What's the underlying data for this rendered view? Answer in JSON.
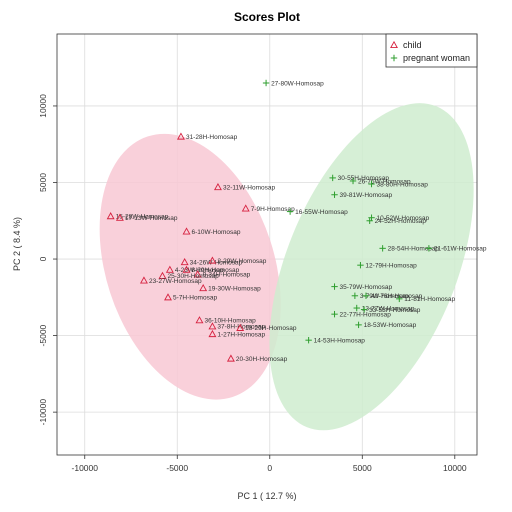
{
  "chart_data": {
    "type": "scatter",
    "title": "Scores Plot",
    "xlabel": "PC 1 ( 12.7 %)",
    "ylabel": "PC 2 ( 8.4 %)",
    "xlim": [
      -11500,
      11200
    ],
    "ylim": [
      -12800,
      14700
    ],
    "xticks": [
      -10000,
      -5000,
      0,
      5000,
      10000
    ],
    "yticks": [
      -10000,
      -5000,
      0,
      5000,
      10000
    ],
    "grid": true,
    "legend_position": "top-right",
    "colors": {
      "child": "#d6213f",
      "child_fill": "#f8c8d4",
      "pregnant": "#2e9e2e",
      "pregnant_fill": "#cfeccf",
      "grid": "#dcdcdc",
      "frame": "#333333"
    },
    "ellipses": [
      {
        "series": "child",
        "center": [
          -4300,
          -500
        ],
        "semi_axes": [
          4550,
          8950
        ],
        "angle_deg": -18
      },
      {
        "series": "pregnant",
        "center": [
          5500,
          -500
        ],
        "semi_axes": [
          4600,
          11300
        ],
        "angle_deg": 22
      }
    ],
    "series": [
      {
        "name": "child",
        "marker": "triangle",
        "points": [
          {
            "label": "31-28H-Homosap",
            "x": -4800,
            "y": 8000
          },
          {
            "label": "32-11W-Homosap",
            "x": -2800,
            "y": 4700
          },
          {
            "label": "7-9H-Homosap",
            "x": -1300,
            "y": 3300
          },
          {
            "label": "15-28W-Homosap",
            "x": -8600,
            "y": 2800
          },
          {
            "label": "17-13W-Homosap",
            "x": -8100,
            "y": 2700
          },
          {
            "label": "6-10W-Homosap",
            "x": -4500,
            "y": 1800
          },
          {
            "label": "34-26W-Homosap",
            "x": -4600,
            "y": -200
          },
          {
            "label": "2-29W-Homosap",
            "x": -3100,
            "y": -100
          },
          {
            "label": "4-23W-Homosap",
            "x": -5400,
            "y": -700
          },
          {
            "label": "8-29H-Homosap",
            "x": -4500,
            "y": -700
          },
          {
            "label": "9-34H-Homosap",
            "x": -3900,
            "y": -1000
          },
          {
            "label": "25-30H-Homosap",
            "x": -5800,
            "y": -1100
          },
          {
            "label": "23-27W-Homosap",
            "x": -6800,
            "y": -1400
          },
          {
            "label": "19-30W-Homosap",
            "x": -3600,
            "y": -1900
          },
          {
            "label": "5-7H-Homosap",
            "x": -5500,
            "y": -2500
          },
          {
            "label": "36-10H-Homosap",
            "x": -3800,
            "y": -4000
          },
          {
            "label": "37-8H-Homosap",
            "x": -3100,
            "y": -4400
          },
          {
            "label": "18-29H-Homosap",
            "x": -1600,
            "y": -4500
          },
          {
            "label": "1-27H-Homosap",
            "x": -3100,
            "y": -4900
          },
          {
            "label": "20-30H-Homosap",
            "x": -2100,
            "y": -6500
          }
        ]
      },
      {
        "name": "pregnant woman",
        "marker": "plus",
        "points": [
          {
            "label": "27-80W-Homosap",
            "x": -200,
            "y": 11500
          },
          {
            "label": "30-55H-Homosap",
            "x": 3400,
            "y": 5300
          },
          {
            "label": "26-75W-Homosap",
            "x": 4500,
            "y": 5100
          },
          {
            "label": "38-80H-Homosap",
            "x": 5500,
            "y": 4900
          },
          {
            "label": "39-81W-Homosap",
            "x": 3500,
            "y": 4200
          },
          {
            "label": "16-55W-Homosap",
            "x": 1100,
            "y": 3100
          },
          {
            "label": "10-52W-Homosap",
            "x": 5500,
            "y": 2700
          },
          {
            "label": "24-52H-Homosap",
            "x": 5400,
            "y": 2500
          },
          {
            "label": "28-54H-Homosap",
            "x": 6100,
            "y": 700
          },
          {
            "label": "21-61W-Homosap",
            "x": 8600,
            "y": 700
          },
          {
            "label": "12-79H-Homosap",
            "x": 4900,
            "y": -400
          },
          {
            "label": "35-79W-Homosap",
            "x": 3500,
            "y": -1800
          },
          {
            "label": "3-79W-Homosap",
            "x": 4600,
            "y": -2400
          },
          {
            "label": "40-78H-Homosap",
            "x": 5200,
            "y": -2400
          },
          {
            "label": "11-81H-Homosap",
            "x": 7000,
            "y": -2600
          },
          {
            "label": "13-77W-Homosap",
            "x": 4700,
            "y": -3200
          },
          {
            "label": "33-53H-Homosap",
            "x": 5100,
            "y": -3300
          },
          {
            "label": "22-77H-Homosap",
            "x": 3500,
            "y": -3600
          },
          {
            "label": "18-53W-Homosap",
            "x": 4800,
            "y": -4300
          },
          {
            "label": "14-53H-Homosap",
            "x": 2100,
            "y": -5300
          }
        ]
      }
    ]
  }
}
